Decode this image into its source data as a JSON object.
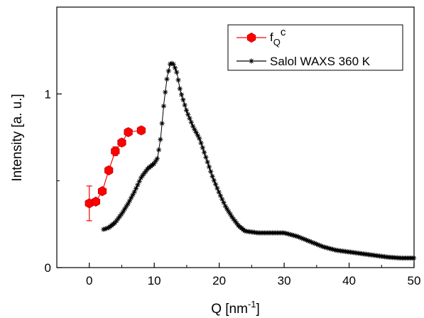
{
  "chart_data": {
    "type": "scatter",
    "title": "",
    "xlabel": "Q [nm",
    "xlabel_exponent": "-1",
    "xlabel_suffix": "]",
    "ylabel": "Intensity [a. u.]",
    "xlim": [
      -5,
      50
    ],
    "ylim": [
      0,
      1.5
    ],
    "x_ticks": [
      0,
      10,
      20,
      30,
      40,
      50
    ],
    "x_tick_labels": [
      "0",
      "10",
      "20",
      "30",
      "40",
      "50"
    ],
    "y_ticks": [
      0,
      1
    ],
    "y_tick_labels": [
      "0",
      "1"
    ],
    "grid": false,
    "legend_position": "top-right",
    "series": [
      {
        "name_main": "f",
        "name_sub": "Q",
        "name_sup": "c",
        "color": "#ff0000",
        "edge_color": "#cc0000",
        "marker": "hexagon",
        "x": [
          0,
          1,
          2,
          3,
          4,
          5,
          6,
          8
        ],
        "y": [
          0.37,
          0.38,
          0.44,
          0.56,
          0.67,
          0.72,
          0.78,
          0.79
        ],
        "yerr": [
          0.1,
          0.015,
          0.015,
          0.02,
          0.025,
          0.02,
          0.02,
          0.02
        ]
      },
      {
        "name": "Salol WAXS 360 K",
        "color": "#000000",
        "marker": "star",
        "curve": [
          [
            2.2,
            0.22
          ],
          [
            3,
            0.23
          ],
          [
            4,
            0.26
          ],
          [
            5,
            0.31
          ],
          [
            6,
            0.37
          ],
          [
            7,
            0.44
          ],
          [
            8,
            0.52
          ],
          [
            9,
            0.57
          ],
          [
            10,
            0.6
          ],
          [
            10.5,
            0.63
          ],
          [
            11,
            0.75
          ],
          [
            11.5,
            0.95
          ],
          [
            12,
            1.1
          ],
          [
            12.5,
            1.18
          ],
          [
            13,
            1.17
          ],
          [
            13.5,
            1.12
          ],
          [
            14,
            1.02
          ],
          [
            15,
            0.9
          ],
          [
            16,
            0.81
          ],
          [
            17,
            0.74
          ],
          [
            18,
            0.63
          ],
          [
            19,
            0.52
          ],
          [
            20,
            0.43
          ],
          [
            21,
            0.35
          ],
          [
            22,
            0.29
          ],
          [
            23,
            0.24
          ],
          [
            24,
            0.21
          ],
          [
            26,
            0.2
          ],
          [
            28,
            0.2
          ],
          [
            30,
            0.2
          ],
          [
            32,
            0.18
          ],
          [
            34,
            0.15
          ],
          [
            36,
            0.12
          ],
          [
            38,
            0.1
          ],
          [
            40,
            0.09
          ],
          [
            42,
            0.08
          ],
          [
            44,
            0.07
          ],
          [
            46,
            0.06
          ],
          [
            48,
            0.055
          ],
          [
            50,
            0.055
          ]
        ]
      }
    ]
  }
}
